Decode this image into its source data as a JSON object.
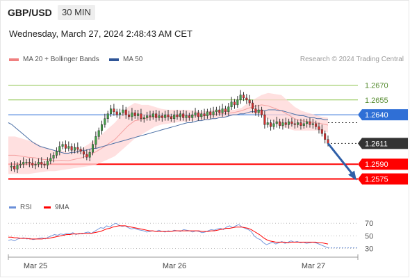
{
  "header": {
    "symbol": "GBP/USD",
    "timeframe": "30 MIN",
    "datetime": "Wednesday, March 27, 2024 2:48:43 AM CET"
  },
  "legend": {
    "bollinger": {
      "label": "MA 20 + Bollinger Bands",
      "color": "#f08080"
    },
    "ma50": {
      "label": "MA 50",
      "color": "#2f5597"
    },
    "credit": "Research © 2024 Trading Central"
  },
  "rsi_legend": {
    "rsi": {
      "label": "RSI",
      "color": "#6a8fd8"
    },
    "ma9": {
      "label": "9MA",
      "color": "#ff0000"
    }
  },
  "colors": {
    "up": "#43a047",
    "down": "#d32f2f",
    "band": "#ffd6d6",
    "green_level": "#8bc34a",
    "blue_level": "#2f6fd6",
    "red_level": "#ff0000",
    "current_price_bg": "#333333",
    "arrow": "#2f5fa8"
  },
  "chart_data": [
    {
      "type": "candlestick",
      "x_labels": [
        "Mar 25",
        "Mar 26",
        "Mar 27"
      ],
      "price_ylim": [
        1.2555,
        1.269
      ],
      "levels": [
        {
          "value": 1.267,
          "label": "1.2670",
          "kind": "resistance"
        },
        {
          "value": 1.2655,
          "label": "1.2655",
          "kind": "resistance"
        },
        {
          "value": 1.264,
          "label": "1.2640",
          "kind": "ma50"
        },
        {
          "value": 1.2611,
          "label": "1.2611",
          "kind": "current"
        },
        {
          "value": 1.259,
          "label": "1.2590",
          "kind": "support"
        },
        {
          "value": 1.2575,
          "label": "1.2575",
          "kind": "support"
        }
      ],
      "close_path": [
        1.2587,
        1.2588,
        1.2585,
        1.2589,
        1.259,
        1.2592,
        1.2592,
        1.2591,
        1.2589,
        1.259,
        1.2592,
        1.259,
        1.2589,
        1.2593,
        1.2596,
        1.2599,
        1.2603,
        1.2608,
        1.261,
        1.2606,
        1.2608,
        1.2604,
        1.2607,
        1.2605,
        1.2603,
        1.26,
        1.2597,
        1.2602,
        1.261,
        1.2618,
        1.2624,
        1.263,
        1.2636,
        1.2641,
        1.2646,
        1.2643,
        1.264,
        1.2642,
        1.2645,
        1.264,
        1.2638,
        1.2642,
        1.2639,
        1.2641,
        1.2636,
        1.2637,
        1.2639,
        1.2638,
        1.2641,
        1.2637,
        1.2639,
        1.2637,
        1.264,
        1.2638,
        1.2636,
        1.264,
        1.2638,
        1.2641,
        1.2637,
        1.2639,
        1.2637,
        1.264,
        1.2642,
        1.2638,
        1.2641,
        1.2639,
        1.2643,
        1.264,
        1.2643,
        1.2645,
        1.2642,
        1.2646,
        1.2643,
        1.2648,
        1.2653,
        1.265,
        1.2655,
        1.266,
        1.2657,
        1.2655,
        1.2652,
        1.2646,
        1.2642,
        1.2645,
        1.264,
        1.263,
        1.2632,
        1.2628,
        1.2631,
        1.2633,
        1.2629,
        1.2632,
        1.263,
        1.2633,
        1.2631,
        1.263,
        1.2632,
        1.2629,
        1.2631,
        1.2633,
        1.263,
        1.2631,
        1.2628,
        1.2625,
        1.2621,
        1.2615,
        1.2611
      ],
      "ma50_path": [
        1.2632,
        1.263,
        1.2627,
        1.2624,
        1.2621,
        1.2618,
        1.2615,
        1.2612,
        1.261,
        1.2608,
        1.2607,
        1.2606,
        1.2605,
        1.2604,
        1.2603,
        1.2602,
        1.2601,
        1.2601,
        1.2602,
        1.2602,
        1.2603,
        1.2604,
        1.2604,
        1.2605,
        1.2606,
        1.2606,
        1.2607,
        1.2608,
        1.2609,
        1.261,
        1.2611,
        1.2612,
        1.2613,
        1.2614,
        1.2615,
        1.2616,
        1.2617,
        1.2618,
        1.2619,
        1.262,
        1.2621,
        1.2622,
        1.2623,
        1.2624,
        1.2625,
        1.2626,
        1.2627,
        1.2628,
        1.2629,
        1.263,
        1.2631,
        1.2632,
        1.2632,
        1.2633,
        1.2634,
        1.2634,
        1.2635,
        1.2635,
        1.2636,
        1.2636,
        1.2637,
        1.2637,
        1.2638,
        1.2639,
        1.264,
        1.264,
        1.2641,
        1.2641,
        1.2642,
        1.2643,
        1.2643,
        1.2644,
        1.2644,
        1.2644,
        1.2645,
        1.2645,
        1.2645,
        1.2644,
        1.2644,
        1.2643,
        1.2642,
        1.2641,
        1.264,
        1.2639,
        1.2639,
        1.2638,
        1.2637,
        1.2637,
        1.2636,
        1.2636,
        1.2635,
        1.2635
      ],
      "band_upper_path": [
        1.2618,
        1.2618,
        1.2616,
        1.2614,
        1.2612,
        1.2608,
        1.2606,
        1.2604,
        1.2604,
        1.2602,
        1.2604,
        1.2606,
        1.261,
        1.2615,
        1.262,
        1.2626,
        1.2632,
        1.264,
        1.2648,
        1.2652,
        1.265,
        1.265,
        1.2648,
        1.2646,
        1.2645,
        1.2645,
        1.2645,
        1.2645,
        1.2644,
        1.2643,
        1.2644,
        1.2645,
        1.2645,
        1.2645,
        1.2645,
        1.2647,
        1.2652,
        1.2656,
        1.266,
        1.2662,
        1.2661,
        1.266,
        1.2654,
        1.2648,
        1.2644,
        1.2642,
        1.264,
        1.2638,
        1.2637
      ],
      "band_lower_path": [
        1.258,
        1.258,
        1.258,
        1.258,
        1.2581,
        1.2582,
        1.2583,
        1.2583,
        1.2584,
        1.2585,
        1.2586,
        1.2587,
        1.2588,
        1.2589,
        1.2592,
        1.2595,
        1.2598,
        1.2604,
        1.261,
        1.2616,
        1.262,
        1.2624,
        1.2628,
        1.263,
        1.2631,
        1.2632,
        1.2633,
        1.2633,
        1.2634,
        1.2634,
        1.2635,
        1.2636,
        1.2637,
        1.2638,
        1.264,
        1.2641,
        1.2641,
        1.2641,
        1.264,
        1.2636,
        1.2632,
        1.2628,
        1.2626,
        1.2624,
        1.2624,
        1.2624,
        1.2624,
        1.2624,
        1.2622
      ],
      "projection": {
        "from": 1.2611,
        "to": 1.2575
      }
    },
    {
      "type": "line",
      "title": "RSI",
      "ylim": [
        25,
        78
      ],
      "ticks": [
        70,
        50,
        30
      ],
      "series": [
        {
          "name": "RSI",
          "values": [
            43,
            44,
            42,
            45,
            46,
            47,
            45,
            46,
            44,
            45,
            46,
            47,
            45,
            48,
            50,
            52,
            51,
            53,
            52,
            54,
            53,
            55,
            52,
            54,
            53,
            55,
            56,
            54,
            57,
            60,
            63,
            62,
            66,
            64,
            68,
            70,
            67,
            65,
            66,
            63,
            61,
            62,
            60,
            59,
            58,
            56,
            57,
            58,
            57,
            59,
            57,
            56,
            58,
            57,
            59,
            58,
            57,
            60,
            59,
            58,
            56,
            58,
            57,
            55,
            56,
            58,
            60,
            59,
            61,
            62,
            60,
            64,
            66,
            63,
            66,
            68,
            64,
            62,
            60,
            57,
            50,
            46,
            44,
            39,
            36,
            38,
            40,
            37,
            39,
            41,
            38,
            40,
            42,
            40,
            41,
            39,
            40,
            38,
            39,
            40,
            39,
            37,
            35,
            33,
            31
          ]
        },
        {
          "name": "9MA",
          "values": [
            48,
            48,
            47,
            47,
            46,
            46,
            46,
            45,
            45,
            45,
            45,
            45,
            46,
            46,
            47,
            48,
            49,
            50,
            51,
            52,
            52,
            53,
            53,
            53,
            54,
            54,
            54,
            54,
            55,
            56,
            57,
            59,
            61,
            62,
            64,
            65,
            66,
            66,
            66,
            65,
            64,
            63,
            62,
            61,
            60,
            59,
            58,
            58,
            57,
            57,
            57,
            57,
            57,
            57,
            58,
            58,
            58,
            58,
            58,
            58,
            58,
            58,
            58,
            57,
            57,
            57,
            58,
            58,
            59,
            60,
            61,
            62,
            62,
            63,
            64,
            64,
            64,
            63,
            62,
            60,
            57,
            54,
            51,
            47,
            44,
            42,
            41,
            40,
            40,
            40,
            40,
            39,
            40,
            40,
            40,
            40,
            40,
            40,
            40,
            40,
            40,
            39,
            39,
            38,
            37
          ]
        }
      ]
    }
  ]
}
